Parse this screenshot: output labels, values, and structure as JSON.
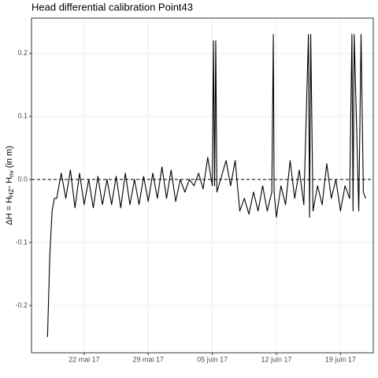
{
  "chart_data": {
    "type": "line",
    "title": "Head differential calibration Point43",
    "y_label": [
      "ΔH = H",
      "HZ",
      "- H",
      "nv",
      " (in m)"
    ],
    "x": [
      "2017-05-18T00:00",
      "2017-05-18T06:00",
      "2017-05-18T12:00",
      "2017-05-18T18:00",
      "2017-05-19T00:00",
      "2017-05-19T12:00",
      "2017-05-20T00:00",
      "2017-05-20T12:00",
      "2017-05-21T00:00",
      "2017-05-21T12:00",
      "2017-05-22T00:00",
      "2017-05-22T12:00",
      "2017-05-23T00:00",
      "2017-05-23T12:00",
      "2017-05-24T00:00",
      "2017-05-24T12:00",
      "2017-05-25T00:00",
      "2017-05-25T12:00",
      "2017-05-26T00:00",
      "2017-05-26T12:00",
      "2017-05-27T00:00",
      "2017-05-27T12:00",
      "2017-05-28T00:00",
      "2017-05-28T12:00",
      "2017-05-29T00:00",
      "2017-05-29T12:00",
      "2017-05-30T00:00",
      "2017-05-30T12:00",
      "2017-05-31T00:00",
      "2017-05-31T12:00",
      "2017-06-01T00:00",
      "2017-06-01T12:00",
      "2017-06-02T00:00",
      "2017-06-02T12:00",
      "2017-06-03T00:00",
      "2017-06-03T12:00",
      "2017-06-04T00:00",
      "2017-06-04T12:00",
      "2017-06-05T00:00",
      "2017-06-05T03:00",
      "2017-06-05T06:00",
      "2017-06-05T09:00",
      "2017-06-05T12:00",
      "2017-06-06T00:00",
      "2017-06-06T12:00",
      "2017-06-07T00:00",
      "2017-06-07T12:00",
      "2017-06-08T00:00",
      "2017-06-08T12:00",
      "2017-06-09T00:00",
      "2017-06-09T12:00",
      "2017-06-10T00:00",
      "2017-06-10T12:00",
      "2017-06-11T00:00",
      "2017-06-11T12:00",
      "2017-06-11T16:00",
      "2017-06-11T18:00",
      "2017-06-12T00:00",
      "2017-06-12T12:00",
      "2017-06-13T00:00",
      "2017-06-13T12:00",
      "2017-06-14T00:00",
      "2017-06-14T12:00",
      "2017-06-15T00:00",
      "2017-06-15T12:00",
      "2017-06-15T15:00",
      "2017-06-15T18:00",
      "2017-06-16T00:00",
      "2017-06-16T12:00",
      "2017-06-17T00:00",
      "2017-06-17T12:00",
      "2017-06-18T00:00",
      "2017-06-18T12:00",
      "2017-06-19T00:00",
      "2017-06-19T12:00",
      "2017-06-20T00:00",
      "2017-06-20T06:00",
      "2017-06-20T09:00",
      "2017-06-20T12:00",
      "2017-06-21T00:00",
      "2017-06-21T06:00",
      "2017-06-21T12:00",
      "2017-06-21T18:00"
    ],
    "values": [
      -0.25,
      -0.12,
      -0.05,
      -0.03,
      -0.03,
      0.01,
      -0.03,
      0.015,
      -0.045,
      0.01,
      -0.04,
      0.0,
      -0.045,
      0.005,
      -0.04,
      0.0,
      -0.04,
      0.005,
      -0.045,
      0.01,
      -0.04,
      0.0,
      -0.04,
      0.005,
      -0.035,
      0.01,
      -0.03,
      0.02,
      -0.03,
      0.015,
      -0.035,
      0.0,
      -0.02,
      0.0,
      -0.01,
      0.01,
      -0.015,
      0.035,
      -0.01,
      0.22,
      -0.01,
      0.22,
      -0.02,
      0.005,
      0.03,
      -0.01,
      0.03,
      -0.05,
      -0.03,
      -0.055,
      -0.02,
      -0.05,
      -0.01,
      -0.05,
      -0.02,
      0.23,
      -0.02,
      -0.06,
      -0.01,
      -0.04,
      0.03,
      -0.03,
      0.015,
      -0.04,
      0.23,
      -0.06,
      0.23,
      -0.05,
      -0.01,
      -0.04,
      0.025,
      -0.03,
      0.0,
      -0.05,
      -0.01,
      -0.03,
      0.23,
      -0.05,
      0.23,
      -0.05,
      0.23,
      -0.02,
      -0.03
    ],
    "color": "#000000",
    "reference_line": 0,
    "xlim": [
      "2017-05-16T06:00",
      "2017-06-22T14:00"
    ],
    "xticks": [
      {
        "value": "2017-05-22T00:00",
        "label": "22 mai 17"
      },
      {
        "value": "2017-05-29T00:00",
        "label": "29 mai 17"
      },
      {
        "value": "2017-06-05T00:00",
        "label": "05 juin 17"
      },
      {
        "value": "2017-06-12T00:00",
        "label": "12 juin 17"
      },
      {
        "value": "2017-06-19T00:00",
        "label": "19 juin 17"
      }
    ],
    "ylim": [
      -0.275,
      0.256
    ],
    "yticks": [
      -0.2,
      -0.1,
      {
        "value": 0,
        "label": "0.0"
      },
      0.1,
      0.2
    ],
    "grid": true
  }
}
